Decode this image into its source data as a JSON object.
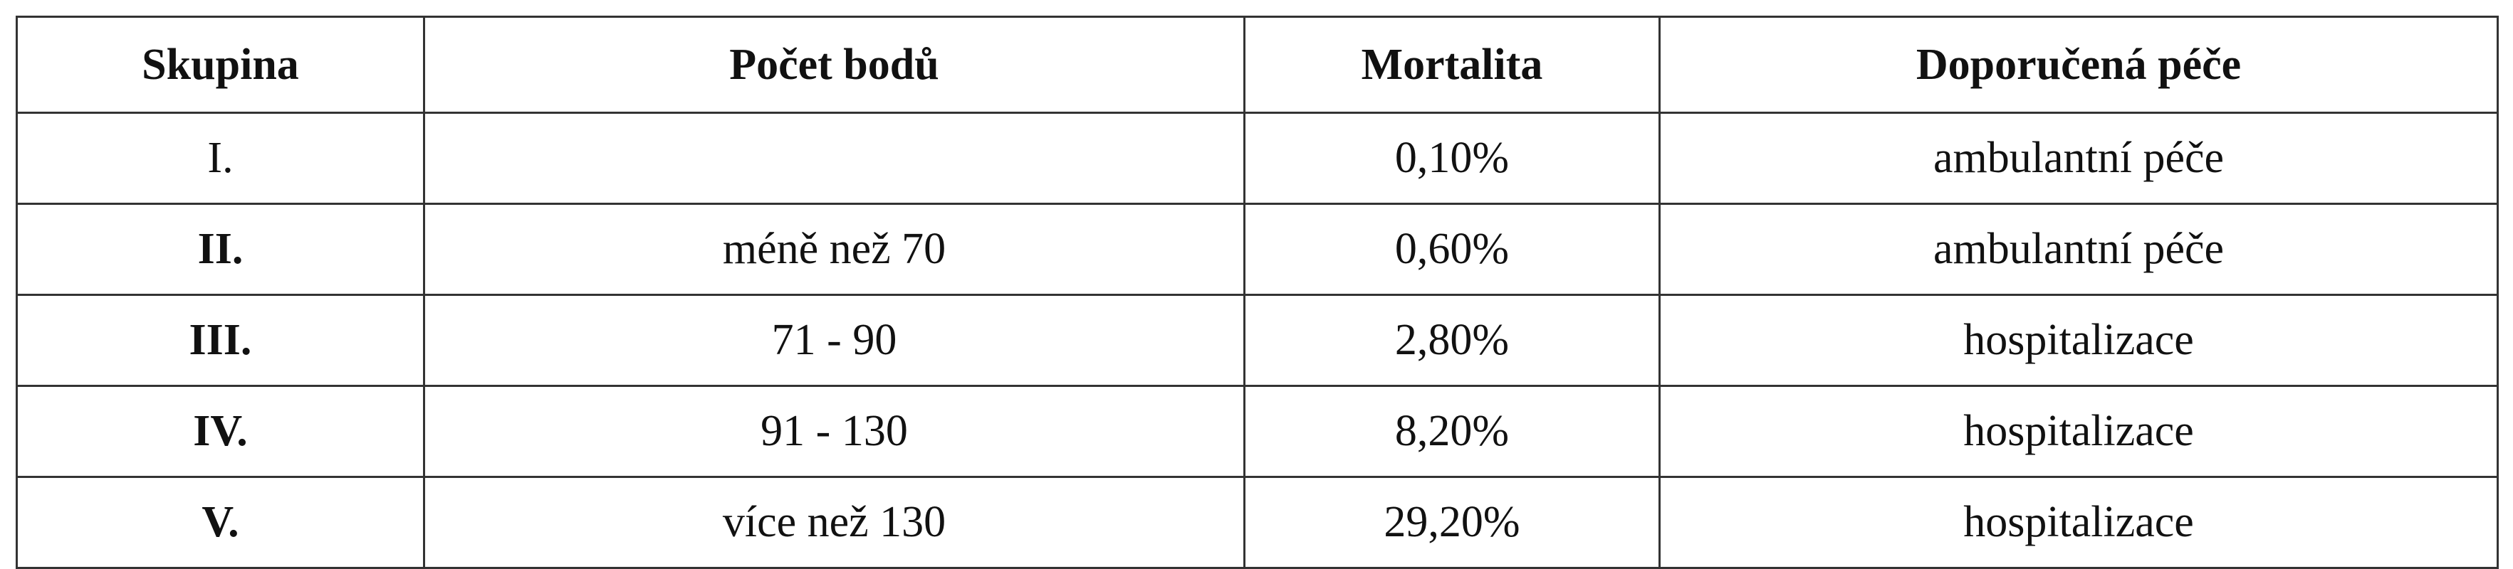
{
  "table": {
    "header": [
      "Skupina",
      "Počet bodů",
      "Mortalita",
      "Doporučená péče"
    ],
    "rows": [
      [
        "I.",
        null,
        "0,10%",
        "ambulantní péče"
      ],
      [
        "II.",
        "méně než 70",
        "0,60%",
        "ambulantní péče"
      ],
      [
        "III.",
        "71 - 90",
        "2,80%",
        "hospitalizace"
      ],
      [
        "IV.",
        "91 - 130",
        "8,20%",
        "hospitalizace"
      ],
      [
        "V.",
        "více než 130",
        "29,20%",
        "hospitalizace"
      ]
    ]
  }
}
